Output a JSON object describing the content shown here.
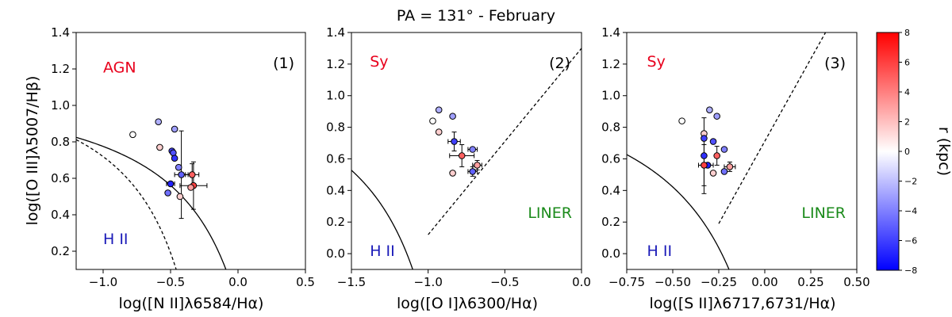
{
  "figure": {
    "title": "PA = 131° - February"
  },
  "colorbar": {
    "label": "r (kpc)",
    "vmin": -8,
    "vmax": 8,
    "ticks": [
      -8,
      -6,
      -4,
      -2,
      0,
      2,
      4,
      6,
      8
    ],
    "tick_labels": [
      "−8",
      "−6",
      "−4",
      "−2",
      "0",
      "2",
      "4",
      "6",
      "8"
    ],
    "colormap": "bwr",
    "low_color": "#0000ff",
    "mid_color": "#ffffff",
    "high_color": "#ff0000"
  },
  "chart_data": [
    {
      "type": "scatter",
      "panel_label": "(1)",
      "xlabel": "log([N II]λ6584/Hα)",
      "ylabel": "log([O III]λ5007/Hβ)",
      "xlim": [
        -1.2,
        0.5
      ],
      "ylim": [
        0.1,
        1.4
      ],
      "xticks": [
        -1.0,
        -0.5,
        0.0,
        0.5
      ],
      "xtick_labels": [
        "−1.0",
        "−0.5",
        "0.0",
        "0.5"
      ],
      "yticks": [
        0.2,
        0.4,
        0.6,
        0.8,
        1.0,
        1.2,
        1.4
      ],
      "ytick_labels": [
        "0.2",
        "0.4",
        "0.6",
        "0.8",
        "1.0",
        "1.2",
        "1.4"
      ],
      "region_labels": [
        {
          "text": "AGN",
          "x": -1.0,
          "y": 1.21,
          "color": "#e8001c"
        },
        {
          "text": "H II",
          "x": -1.0,
          "y": 0.27,
          "color": "#1a1ab8"
        }
      ],
      "points": [
        {
          "x": -0.78,
          "y": 0.84,
          "r": 0.0
        },
        {
          "x": -0.59,
          "y": 0.91,
          "r": -2.5
        },
        {
          "x": -0.58,
          "y": 0.77,
          "r": 1.5
        },
        {
          "x": -0.47,
          "y": 0.87,
          "r": -3.0
        },
        {
          "x": -0.49,
          "y": 0.75,
          "r": -6.0
        },
        {
          "x": -0.48,
          "y": 0.74,
          "r": -5.5
        },
        {
          "x": -0.47,
          "y": 0.71,
          "r": -6.5
        },
        {
          "x": -0.44,
          "y": 0.66,
          "r": -4.0
        },
        {
          "x": -0.42,
          "y": 0.62,
          "r": -5.0,
          "xerr": 0.05,
          "yerr": 0.24
        },
        {
          "x": -0.5,
          "y": 0.57,
          "r": -7.0,
          "xerr": 0.03
        },
        {
          "x": -0.52,
          "y": 0.52,
          "r": -4.5
        },
        {
          "x": -0.43,
          "y": 0.5,
          "r": 1.5
        },
        {
          "x": -0.34,
          "y": 0.62,
          "r": 5.0,
          "xerr": 0.05,
          "yerr": 0.06
        },
        {
          "x": -0.33,
          "y": 0.56,
          "r": 6.0,
          "xerr": 0.1,
          "yerr": 0.13
        },
        {
          "x": -0.35,
          "y": 0.55,
          "r": 3.0
        }
      ]
    },
    {
      "type": "scatter",
      "panel_label": "(2)",
      "xlabel": "log([O I]λ6300/Hα)",
      "ylabel": "",
      "xlim": [
        -1.5,
        0.0
      ],
      "ylim": [
        -0.1,
        1.4
      ],
      "xticks": [
        -1.5,
        -1.0,
        -0.5,
        0.0
      ],
      "xtick_labels": [
        "−1.5",
        "−1.0",
        "−0.5",
        "0.0"
      ],
      "yticks": [
        0.0,
        0.2,
        0.4,
        0.6,
        0.8,
        1.0,
        1.2,
        1.4
      ],
      "ytick_labels": [
        "0.0",
        "0.2",
        "0.4",
        "0.6",
        "0.8",
        "1.0",
        "1.2",
        "1.4"
      ],
      "region_labels": [
        {
          "text": "Sy",
          "x": -1.38,
          "y": 1.22,
          "color": "#e8001c"
        },
        {
          "text": "LINER",
          "x": -0.35,
          "y": 0.26,
          "color": "#1a8a1a"
        },
        {
          "text": "H II",
          "x": -1.38,
          "y": 0.02,
          "color": "#1a1ab8"
        }
      ],
      "points": [
        {
          "x": -0.93,
          "y": 0.91,
          "r": -2.5
        },
        {
          "x": -0.97,
          "y": 0.84,
          "r": 0.0
        },
        {
          "x": -0.84,
          "y": 0.87,
          "r": -3.0
        },
        {
          "x": -0.93,
          "y": 0.77,
          "r": 1.5
        },
        {
          "x": -0.83,
          "y": 0.71,
          "r": -6.0,
          "xerr": 0.04,
          "yerr": 0.06
        },
        {
          "x": -0.71,
          "y": 0.66,
          "r": -4.0,
          "xerr": 0.03
        },
        {
          "x": -0.78,
          "y": 0.62,
          "r": 5.0,
          "xerr": 0.08,
          "yerr": 0.07
        },
        {
          "x": -0.84,
          "y": 0.51,
          "r": 1.5
        },
        {
          "x": -0.71,
          "y": 0.52,
          "r": -5.0,
          "xerr": 0.03,
          "yerr": 0.03
        },
        {
          "x": -0.68,
          "y": 0.56,
          "r": 3.0,
          "xerr": 0.03,
          "yerr": 0.03
        }
      ]
    },
    {
      "type": "scatter",
      "panel_label": "(3)",
      "xlabel": "log([S II]λ6717,6731/Hα)",
      "ylabel": "",
      "xlim": [
        -0.75,
        0.5
      ],
      "ylim": [
        -0.1,
        1.4
      ],
      "xticks": [
        -0.75,
        -0.5,
        -0.25,
        0.0,
        0.25,
        0.5
      ],
      "xtick_labels": [
        "−0.75",
        "−0.50",
        "−0.25",
        "0.00",
        "0.25",
        "0.50"
      ],
      "yticks": [
        0.0,
        0.2,
        0.4,
        0.6,
        0.8,
        1.0,
        1.2,
        1.4
      ],
      "ytick_labels": [
        "0.0",
        "0.2",
        "0.4",
        "0.6",
        "0.8",
        "1.0",
        "1.2",
        "1.4"
      ],
      "region_labels": [
        {
          "text": "Sy",
          "x": -0.64,
          "y": 1.22,
          "color": "#e8001c"
        },
        {
          "text": "LINER",
          "x": 0.2,
          "y": 0.26,
          "color": "#1a8a1a"
        },
        {
          "text": "H II",
          "x": -0.64,
          "y": 0.02,
          "color": "#1a1ab8"
        }
      ],
      "points": [
        {
          "x": -0.45,
          "y": 0.84,
          "r": 0.0
        },
        {
          "x": -0.3,
          "y": 0.91,
          "r": -2.5
        },
        {
          "x": -0.26,
          "y": 0.87,
          "r": -3.0
        },
        {
          "x": -0.33,
          "y": 0.76,
          "r": 1.5
        },
        {
          "x": -0.33,
          "y": 0.73,
          "r": -6.0
        },
        {
          "x": -0.28,
          "y": 0.71,
          "r": -5.5
        },
        {
          "x": -0.22,
          "y": 0.66,
          "r": -4.0
        },
        {
          "x": -0.26,
          "y": 0.62,
          "r": 5.0,
          "yerr": 0.06
        },
        {
          "x": -0.33,
          "y": 0.62,
          "r": -6.5,
          "yerr": 0.24
        },
        {
          "x": -0.31,
          "y": 0.56,
          "r": -7.0,
          "xerr": 0.03
        },
        {
          "x": -0.33,
          "y": 0.56,
          "r": 6.0,
          "xerr": 0.03,
          "yerr": 0.13
        },
        {
          "x": -0.28,
          "y": 0.51,
          "r": 1.5
        },
        {
          "x": -0.22,
          "y": 0.52,
          "r": -4.5
        },
        {
          "x": -0.19,
          "y": 0.55,
          "r": 3.0,
          "xerr": 0.03,
          "yerr": 0.03
        }
      ]
    }
  ]
}
